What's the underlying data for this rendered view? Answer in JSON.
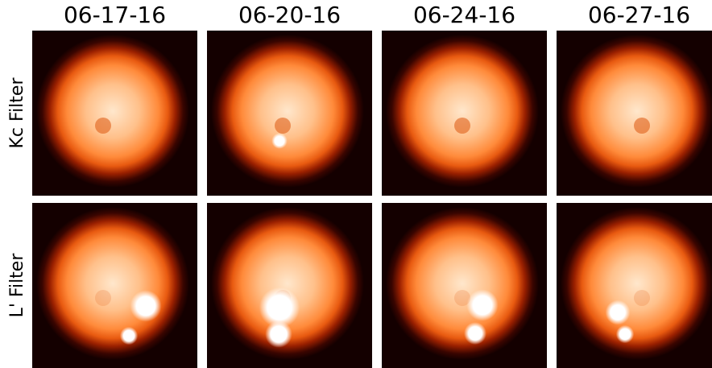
{
  "columns": [
    "06-17-16",
    "06-20-16",
    "06-24-16",
    "06-27-16"
  ],
  "rows": [
    "Kc Filter",
    "L' Filter"
  ]
}
